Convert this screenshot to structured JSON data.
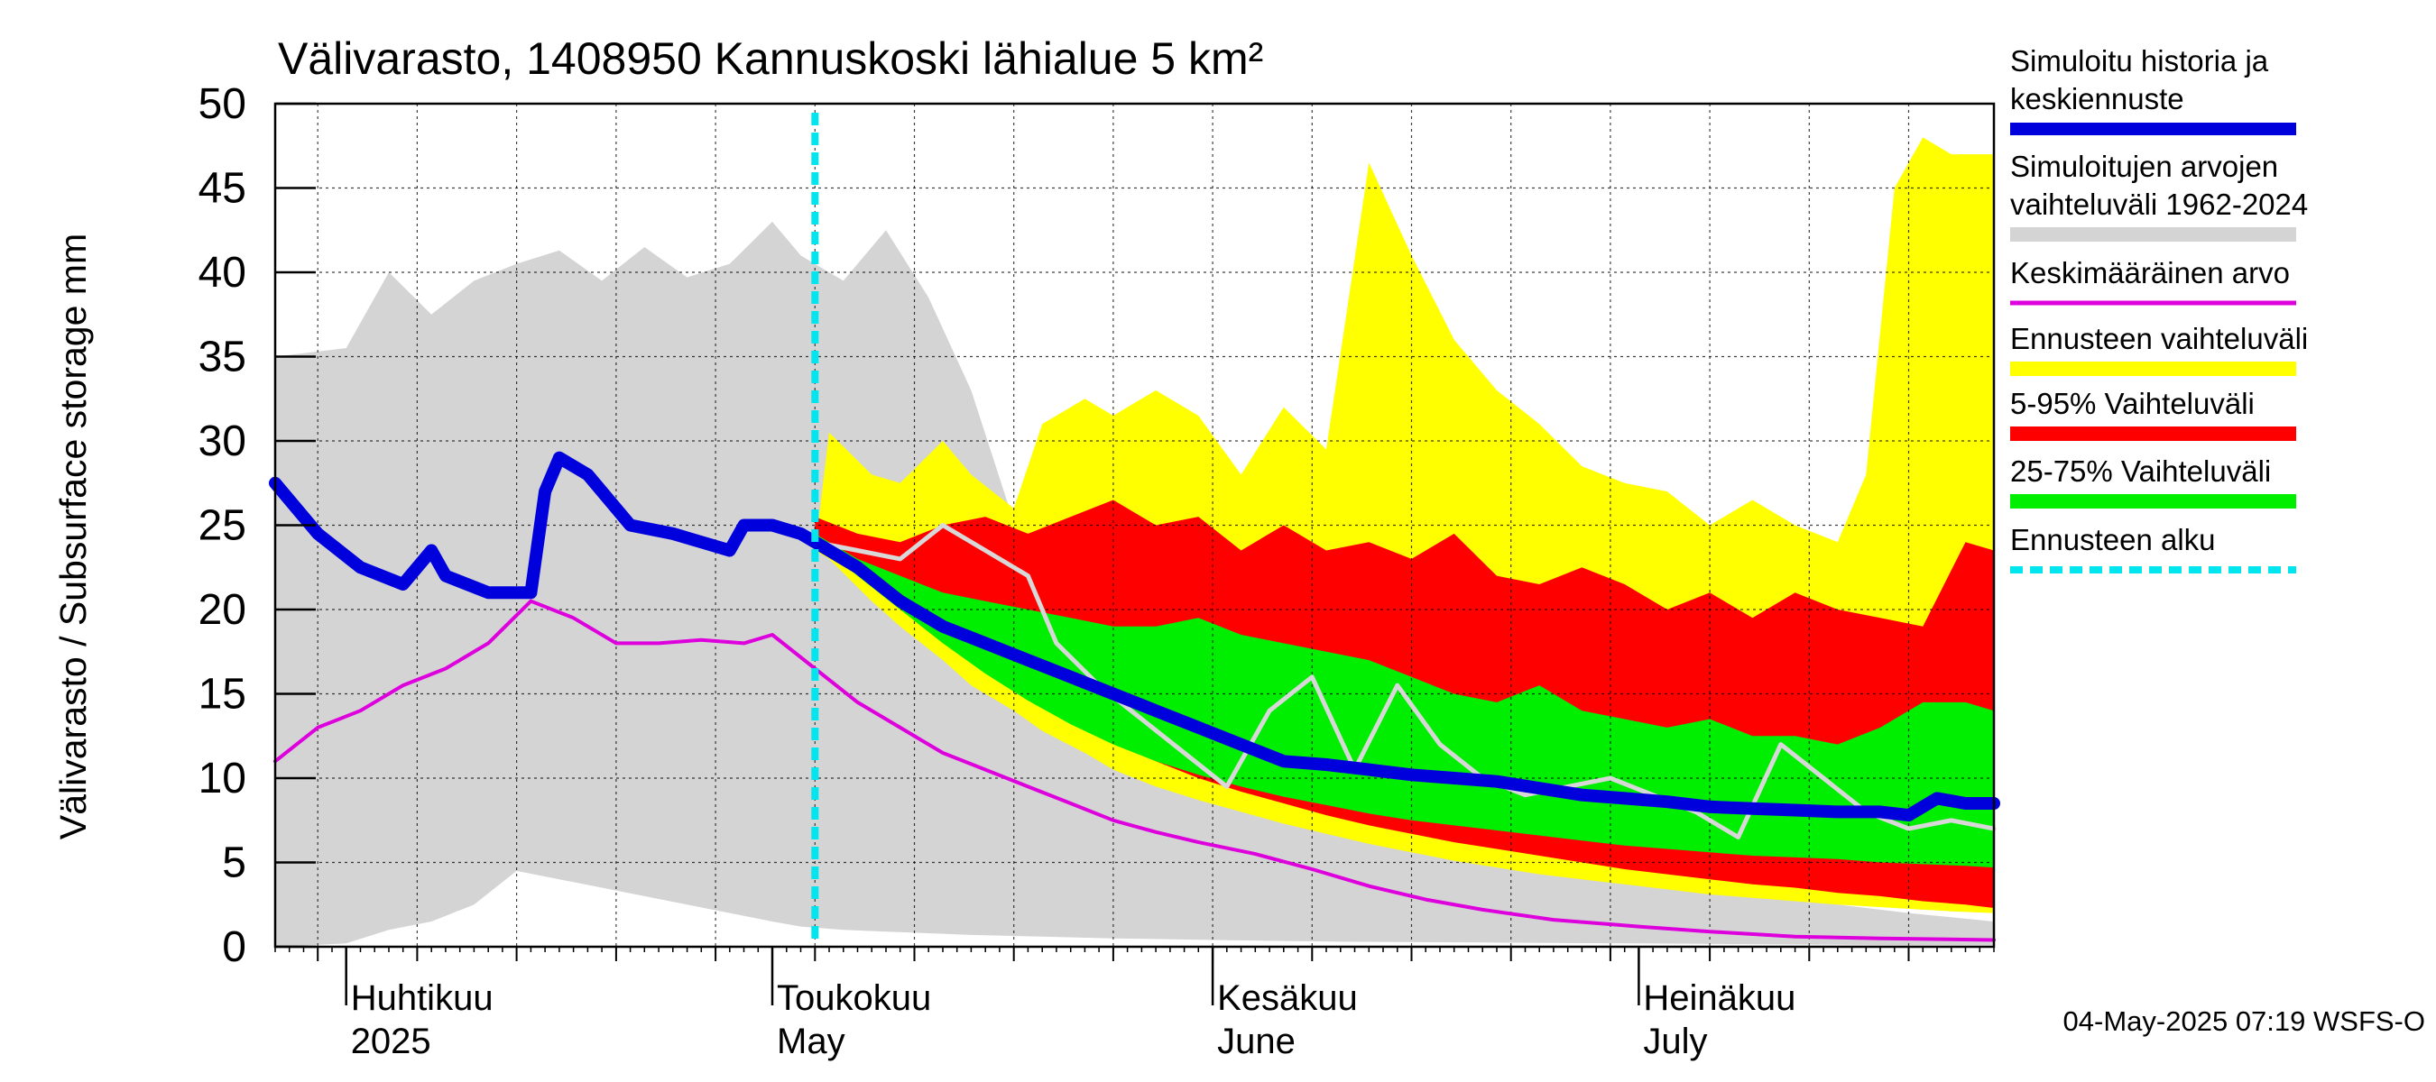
{
  "chart_data": {
    "type": "area",
    "title": "Välivarasto, 1408950 Kannuskoski lähialue 5 km²",
    "ylabel": "Välivarasto / Subsurface storage  mm",
    "ylim": [
      0,
      50
    ],
    "xlim": [
      "2025-03-27",
      "2025-07-26"
    ],
    "y_ticks": [
      0,
      5,
      10,
      15,
      20,
      25,
      30,
      35,
      40,
      45,
      50
    ],
    "x_month_labels": [
      {
        "fi": "Huhtikuu",
        "en": "2025",
        "date": "2025-04-01"
      },
      {
        "fi": "Toukokuu",
        "en": "May",
        "date": "2025-05-01"
      },
      {
        "fi": "Kesäkuu",
        "en": "June",
        "date": "2025-06-01"
      },
      {
        "fi": "Heinäkuu",
        "en": "July",
        "date": "2025-07-01"
      }
    ],
    "grid": true,
    "legend_position": "right",
    "forecast_start": "2025-05-04",
    "footer": "04-May-2025 07:19 WSFS-O",
    "legend": [
      {
        "label": "Simuloitu historia ja keskiennuste",
        "color": "#0000dd",
        "style": "thick-line"
      },
      {
        "label": "Simuloitujen arvojen vaihteluväli 1962-2024",
        "color": "#d4d4d4",
        "style": "band"
      },
      {
        "label": "Keskimääräinen arvo",
        "color": "#dd00dd",
        "style": "line"
      },
      {
        "label": "Ennusteen vaihteluväli",
        "color": "#ffff00",
        "style": "band"
      },
      {
        "label": "5-95% Vaihteluväli",
        "color": "#ff0000",
        "style": "band"
      },
      {
        "label": "25-75% Vaihteluväli",
        "color": "#00ee00",
        "style": "band"
      },
      {
        "label": "Ennusteen alku",
        "color": "#00e5ee",
        "style": "dashed-line"
      }
    ],
    "series": [
      {
        "name": "Simuloitujen arvojen vaihteluväli 1962-2024",
        "kind": "band",
        "color": "#d4d4d4",
        "x": [
          "2025-03-27",
          "2025-04-01",
          "2025-04-04",
          "2025-04-07",
          "2025-04-10",
          "2025-04-13",
          "2025-04-16",
          "2025-04-19",
          "2025-04-22",
          "2025-04-25",
          "2025-04-28",
          "2025-05-01",
          "2025-05-03",
          "2025-05-06",
          "2025-05-09",
          "2025-05-12",
          "2025-05-15",
          "2025-05-20",
          "2025-05-25",
          "2025-06-01",
          "2025-06-10",
          "2025-06-20",
          "2025-07-01",
          "2025-07-10",
          "2025-07-20",
          "2025-07-26"
        ],
        "low": [
          0,
          0.2,
          1.0,
          1.5,
          2.5,
          4.5,
          4.0,
          3.5,
          3.0,
          2.5,
          2.0,
          1.5,
          1.2,
          1.0,
          0.9,
          0.8,
          0.7,
          0.6,
          0.5,
          0.4,
          0.3,
          0.25,
          0.2,
          0.15,
          0.1,
          0.1
        ],
        "high": [
          35,
          35.5,
          40,
          37.5,
          39.5,
          40.5,
          41.3,
          39.5,
          41.5,
          39.7,
          40.5,
          43,
          41,
          39.5,
          42.5,
          38.5,
          33,
          20,
          16,
          13,
          10,
          7,
          4,
          3,
          2,
          1.5
        ]
      },
      {
        "name": "Ennusteen vaihteluväli",
        "kind": "band",
        "color": "#ffff00",
        "x": [
          "2025-05-04",
          "2025-05-05",
          "2025-05-08",
          "2025-05-10",
          "2025-05-13",
          "2025-05-15",
          "2025-05-18",
          "2025-05-20",
          "2025-05-23",
          "2025-05-25",
          "2025-05-28",
          "2025-05-31",
          "2025-06-03",
          "2025-06-06",
          "2025-06-09",
          "2025-06-12",
          "2025-06-15",
          "2025-06-18",
          "2025-06-21",
          "2025-06-24",
          "2025-06-27",
          "2025-06-30",
          "2025-07-03",
          "2025-07-06",
          "2025-07-09",
          "2025-07-12",
          "2025-07-15",
          "2025-07-17",
          "2025-07-19",
          "2025-07-21",
          "2025-07-23",
          "2025-07-26"
        ],
        "low": [
          23.5,
          23.0,
          20.5,
          19.0,
          17.0,
          15.5,
          14.0,
          12.8,
          11.5,
          10.5,
          9.5,
          8.7,
          8.0,
          7.3,
          6.7,
          6.1,
          5.6,
          5.1,
          4.7,
          4.3,
          4.0,
          3.7,
          3.4,
          3.1,
          2.9,
          2.7,
          2.5,
          2.4,
          2.3,
          2.2,
          2.1,
          2.0
        ],
        "high": [
          23.5,
          30.5,
          28.0,
          27.5,
          30.0,
          28.0,
          26.0,
          31.0,
          32.5,
          31.5,
          33.0,
          31.5,
          28.0,
          32.0,
          29.5,
          46.5,
          41.0,
          36.0,
          33.0,
          31.0,
          28.5,
          27.5,
          27.0,
          25.0,
          26.5,
          25.0,
          24.0,
          28.0,
          45.0,
          48.0,
          47.0,
          47.0
        ]
      },
      {
        "name": "5-95% Vaihteluväli",
        "kind": "band",
        "color": "#ff0000",
        "x": [
          "2025-05-04",
          "2025-05-07",
          "2025-05-10",
          "2025-05-13",
          "2025-05-16",
          "2025-05-19",
          "2025-05-22",
          "2025-05-25",
          "2025-05-28",
          "2025-05-31",
          "2025-06-03",
          "2025-06-06",
          "2025-06-09",
          "2025-06-12",
          "2025-06-15",
          "2025-06-18",
          "2025-06-21",
          "2025-06-24",
          "2025-06-27",
          "2025-06-30",
          "2025-07-03",
          "2025-07-06",
          "2025-07-09",
          "2025-07-12",
          "2025-07-15",
          "2025-07-18",
          "2025-07-21",
          "2025-07-24",
          "2025-07-26"
        ],
        "low": [
          24.0,
          22.5,
          20.5,
          18.5,
          16.5,
          15.0,
          13.5,
          12.2,
          11.0,
          10.0,
          9.2,
          8.5,
          7.8,
          7.2,
          6.7,
          6.2,
          5.8,
          5.4,
          5.0,
          4.6,
          4.3,
          4.0,
          3.7,
          3.5,
          3.2,
          3.0,
          2.7,
          2.5,
          2.3
        ],
        "high": [
          25.5,
          24.5,
          24.0,
          25.0,
          25.5,
          24.5,
          25.5,
          26.5,
          25.0,
          25.5,
          23.5,
          25.0,
          23.5,
          24.0,
          23.0,
          24.5,
          22.0,
          21.5,
          22.5,
          21.5,
          20.0,
          21.0,
          19.5,
          21.0,
          20.0,
          19.5,
          19.0,
          24.0,
          23.5
        ]
      },
      {
        "name": "25-75% Vaihteluväli",
        "kind": "band",
        "color": "#00ee00",
        "x": [
          "2025-05-04",
          "2025-05-07",
          "2025-05-10",
          "2025-05-13",
          "2025-05-16",
          "2025-05-19",
          "2025-05-22",
          "2025-05-25",
          "2025-05-28",
          "2025-05-31",
          "2025-06-03",
          "2025-06-06",
          "2025-06-09",
          "2025-06-12",
          "2025-06-15",
          "2025-06-18",
          "2025-06-21",
          "2025-06-24",
          "2025-06-27",
          "2025-06-30",
          "2025-07-03",
          "2025-07-06",
          "2025-07-09",
          "2025-07-12",
          "2025-07-15",
          "2025-07-18",
          "2025-07-21",
          "2025-07-24",
          "2025-07-26"
        ],
        "low": [
          24.0,
          22.0,
          20.0,
          18.0,
          16.2,
          14.6,
          13.2,
          12.0,
          11.0,
          10.2,
          9.5,
          8.9,
          8.4,
          7.9,
          7.5,
          7.2,
          6.9,
          6.6,
          6.3,
          6.0,
          5.8,
          5.6,
          5.4,
          5.3,
          5.2,
          5.0,
          4.9,
          4.8,
          4.7
        ],
        "high": [
          24.5,
          23.0,
          22.0,
          21.0,
          20.5,
          20.0,
          19.5,
          19.0,
          19.0,
          19.5,
          18.5,
          18.0,
          17.5,
          17.0,
          16.0,
          15.0,
          14.5,
          15.5,
          14.0,
          13.5,
          13.0,
          13.5,
          12.5,
          12.5,
          12.0,
          13.0,
          14.5,
          14.5,
          14.0
        ]
      },
      {
        "name": "Keskimääräinen arvo",
        "kind": "line",
        "color": "#dd00dd",
        "x": [
          "2025-03-27",
          "2025-03-30",
          "2025-04-02",
          "2025-04-05",
          "2025-04-08",
          "2025-04-11",
          "2025-04-14",
          "2025-04-17",
          "2025-04-20",
          "2025-04-23",
          "2025-04-26",
          "2025-04-29",
          "2025-05-01",
          "2025-05-04",
          "2025-05-07",
          "2025-05-10",
          "2025-05-13",
          "2025-05-16",
          "2025-05-19",
          "2025-05-22",
          "2025-05-25",
          "2025-05-28",
          "2025-05-31",
          "2025-06-04",
          "2025-06-08",
          "2025-06-12",
          "2025-06-16",
          "2025-06-20",
          "2025-06-25",
          "2025-07-01",
          "2025-07-06",
          "2025-07-12",
          "2025-07-18",
          "2025-07-26"
        ],
        "y": [
          11.0,
          13.0,
          14.0,
          15.5,
          16.5,
          18.0,
          20.5,
          19.5,
          18.0,
          18.0,
          18.2,
          18.0,
          18.5,
          16.5,
          14.5,
          13.0,
          11.5,
          10.5,
          9.5,
          8.5,
          7.5,
          6.8,
          6.2,
          5.5,
          4.6,
          3.6,
          2.8,
          2.2,
          1.6,
          1.2,
          0.9,
          0.6,
          0.5,
          0.4
        ]
      },
      {
        "name": "",
        "kind": "line",
        "color": "#d8d8d8",
        "x": [
          "2025-05-04",
          "2025-05-07",
          "2025-05-10",
          "2025-05-13",
          "2025-05-16",
          "2025-05-19",
          "2025-05-21",
          "2025-05-24",
          "2025-05-27",
          "2025-05-30",
          "2025-06-02",
          "2025-06-05",
          "2025-06-08",
          "2025-06-11",
          "2025-06-14",
          "2025-06-17",
          "2025-06-20",
          "2025-06-23",
          "2025-06-26",
          "2025-06-29",
          "2025-07-02",
          "2025-07-05",
          "2025-07-08",
          "2025-07-11",
          "2025-07-14",
          "2025-07-17",
          "2025-07-20",
          "2025-07-23",
          "2025-07-26"
        ],
        "y": [
          24.0,
          23.5,
          23.0,
          25.0,
          23.5,
          22.0,
          18.0,
          15.5,
          13.5,
          11.5,
          9.5,
          14.0,
          16.0,
          10.5,
          15.5,
          12.0,
          10.0,
          9.0,
          9.5,
          10.0,
          9.0,
          8.0,
          6.5,
          12.0,
          10.0,
          8.0,
          7.0,
          7.5,
          7.0
        ]
      },
      {
        "name": "Simuloitu historia ja keskiennuste",
        "kind": "line",
        "color": "#0000dd",
        "x": [
          "2025-03-27",
          "2025-03-30",
          "2025-04-02",
          "2025-04-05",
          "2025-04-07",
          "2025-04-08",
          "2025-04-11",
          "2025-04-14",
          "2025-04-15",
          "2025-04-16",
          "2025-04-18",
          "2025-04-21",
          "2025-04-24",
          "2025-04-26",
          "2025-04-28",
          "2025-04-29",
          "2025-05-01",
          "2025-05-03",
          "2025-05-04",
          "2025-05-07",
          "2025-05-10",
          "2025-05-13",
          "2025-05-16",
          "2025-05-19",
          "2025-05-22",
          "2025-05-25",
          "2025-05-28",
          "2025-05-31",
          "2025-06-03",
          "2025-06-06",
          "2025-06-09",
          "2025-06-12",
          "2025-06-15",
          "2025-06-18",
          "2025-06-21",
          "2025-06-24",
          "2025-06-27",
          "2025-06-30",
          "2025-07-03",
          "2025-07-06",
          "2025-07-09",
          "2025-07-12",
          "2025-07-15",
          "2025-07-18",
          "2025-07-20",
          "2025-07-22",
          "2025-07-24",
          "2025-07-26"
        ],
        "y": [
          27.5,
          24.5,
          22.5,
          21.5,
          23.5,
          22.0,
          21.0,
          21.0,
          27.0,
          29.0,
          28.0,
          25.0,
          24.5,
          24.0,
          23.5,
          25.0,
          25.0,
          24.5,
          24.0,
          22.5,
          20.5,
          19.0,
          18.0,
          17.0,
          16.0,
          15.0,
          14.0,
          13.0,
          12.0,
          11.0,
          10.8,
          10.5,
          10.2,
          10.0,
          9.8,
          9.4,
          9.0,
          8.8,
          8.6,
          8.3,
          8.2,
          8.1,
          8.0,
          8.0,
          7.8,
          8.8,
          8.5,
          8.5
        ]
      }
    ]
  }
}
